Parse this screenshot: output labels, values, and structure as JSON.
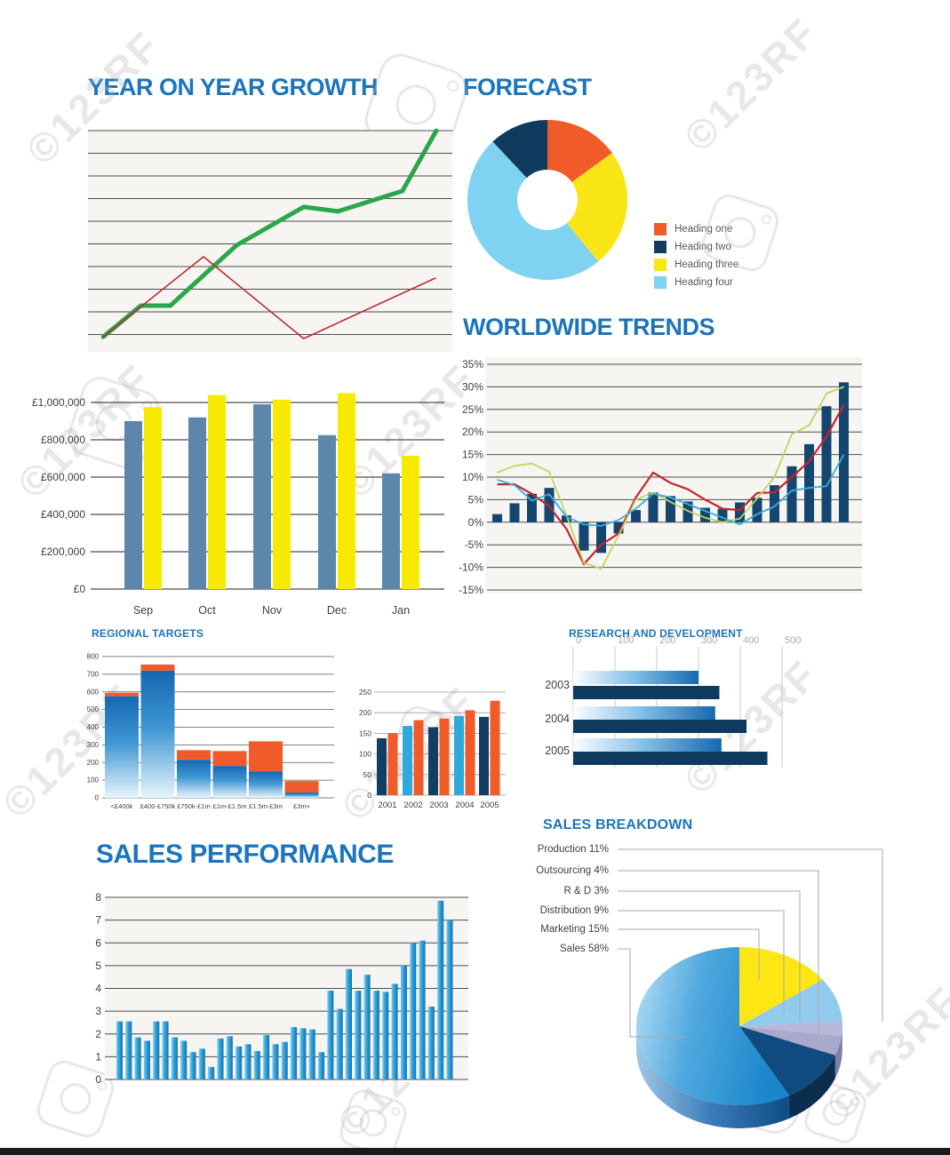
{
  "page": {
    "background": "#FFFFFF",
    "bottom_bar_color": "#1A1A1A"
  },
  "watermark": {
    "text": "©123RF"
  },
  "chart_data": [
    {
      "id": "yoy",
      "type": "line",
      "title": "YEAR ON YEAR GROWTH",
      "bg": "#F6F5F1",
      "grid": {
        "lines": 10,
        "color": "#4D4D4F"
      },
      "axis_labels": "none",
      "series": [
        {
          "name": "growth-green",
          "color": "#2AA74A",
          "width": 5,
          "points": [
            [
              0.042,
              0.068
            ],
            [
              0.145,
              0.209
            ],
            [
              0.226,
              0.209
            ],
            [
              0.408,
              0.482
            ],
            [
              0.592,
              0.655
            ],
            [
              0.686,
              0.635
            ],
            [
              0.863,
              0.727
            ],
            [
              0.956,
              1.0
            ]
          ]
        },
        {
          "name": "growth-red",
          "color": "#BE2A33",
          "width": 1.6,
          "points": [
            [
              0.042,
              0.068
            ],
            [
              0.317,
              0.43
            ],
            [
              0.592,
              0.06
            ],
            [
              0.953,
              0.333
            ]
          ]
        }
      ]
    },
    {
      "id": "forecast",
      "type": "donut",
      "title": "FORECAST",
      "slices": [
        {
          "label": "Heading one",
          "value": 15,
          "color": "#F15A29"
        },
        {
          "label": "Heading three",
          "value": 24,
          "color": "#FAE617"
        },
        {
          "label": "Heading four",
          "value": 49,
          "color": "#7FD2F1"
        },
        {
          "label": "Heading two",
          "value": 12,
          "color": "#113B5E"
        }
      ],
      "legend": [
        {
          "label": "Heading one",
          "color": "#F15A29"
        },
        {
          "label": "Heading two",
          "color": "#113B5E"
        },
        {
          "label": "Heading three",
          "color": "#FAE617"
        },
        {
          "label": "Heading four",
          "color": "#7FD2F1"
        }
      ]
    },
    {
      "id": "trends",
      "type": "combo",
      "title": "WORLDWIDE TRENDS",
      "bg": "#F6F5F1",
      "ymin": -15,
      "ymax": 35,
      "ystep": 5,
      "ylabels": [
        "35%",
        "30%",
        "25%",
        "20%",
        "15%",
        "10%",
        "5%",
        "0%",
        "-5%",
        "-10%",
        "-15%"
      ],
      "bars": {
        "color": "#154670",
        "values": [
          1.8,
          4.2,
          6.3,
          7.6,
          1.5,
          -6.3,
          -6.8,
          -2.5,
          2.7,
          6.6,
          5.8,
          4.6,
          3.2,
          3.0,
          4.4,
          5.4,
          8.2,
          12.4,
          17.3,
          25.7,
          31.0
        ]
      },
      "lines": [
        {
          "name": "red-trend",
          "color": "#C8232C",
          "width": 2.2,
          "values": [
            8.4,
            8.4,
            6.3,
            3.5,
            -1.5,
            -9.3,
            -5.0,
            -2.5,
            5.5,
            11.0,
            8.7,
            7.3,
            5.0,
            3.0,
            2.7,
            6.5,
            6.6,
            10.0,
            13.5,
            19.0,
            26.0
          ]
        },
        {
          "name": "green-trend",
          "color": "#C3D45F",
          "width": 1.8,
          "values": [
            11.0,
            12.5,
            13.0,
            11.2,
            1.5,
            -9.0,
            -10.3,
            -3.0,
            5.0,
            6.6,
            4.5,
            2.5,
            1.0,
            0.0,
            0.8,
            5.3,
            10.0,
            19.5,
            21.5,
            28.5,
            30.0
          ]
        },
        {
          "name": "cyan-trend",
          "color": "#39ADDC",
          "width": 1.8,
          "values": [
            9.4,
            8.2,
            4.8,
            6.2,
            1.2,
            -0.5,
            -0.8,
            0.5,
            3.0,
            6.3,
            5.5,
            4.0,
            2.5,
            1.0,
            -0.5,
            1.8,
            3.5,
            7.0,
            7.6,
            8.0,
            15.0
          ]
        }
      ]
    },
    {
      "id": "monthly",
      "type": "grouped_bars",
      "title": "",
      "categories": [
        "Sep",
        "Oct",
        "Nov",
        "Dec",
        "Jan"
      ],
      "ymax": 1000000,
      "ylabels": [
        "£1,000,000",
        "£800,000",
        "£600,000",
        "£400,000",
        "£200,000",
        "£0"
      ],
      "series": [
        {
          "name": "actual",
          "color": "#5C87AB",
          "values": [
            900000,
            920000,
            990000,
            825000,
            620000
          ]
        },
        {
          "name": "target",
          "color": "#F7EA00",
          "values": [
            975000,
            1040000,
            1015000,
            1050000,
            715000
          ]
        }
      ]
    },
    {
      "id": "regional",
      "type": "stacked_bars",
      "title": "REGIONAL TARGETS",
      "categories": [
        "<£400k",
        "£400-£750k",
        "£750k-£1m",
        "£1m-£1.5m",
        "£1.5m-£3m",
        "£3m+"
      ],
      "ymax": 800,
      "ystep": 100,
      "ylabels": [
        "800",
        "700",
        "600",
        "500",
        "400",
        "300",
        "200",
        "100",
        "0"
      ],
      "base": {
        "name": "achieved",
        "values": [
          575,
          720,
          215,
          180,
          150,
          30
        ]
      },
      "top": {
        "name": "remaining",
        "color": "#F15A29",
        "totals": [
          595,
          755,
          270,
          265,
          320,
          95
        ]
      }
    },
    {
      "id": "fiveyear",
      "type": "pair_bars",
      "title": "",
      "categories": [
        "2001",
        "2002",
        "2003",
        "2004",
        "2005"
      ],
      "ymax": 250,
      "ystep": 50,
      "ylabels": [
        "250",
        "200",
        "150",
        "100",
        "50",
        "0"
      ],
      "first": {
        "values": [
          138,
          168,
          165,
          192,
          190
        ],
        "colors": [
          "#123E63",
          "#2FA8DC",
          "#123E63",
          "#2FA8DC",
          "#123E63"
        ]
      },
      "second": {
        "color": "#F15A29",
        "values": [
          150,
          182,
          186,
          206,
          229
        ]
      }
    },
    {
      "id": "rnd",
      "type": "hbars",
      "title": "RESEARCH AND DEVELOPMENT",
      "xmax": 500,
      "xlabels": [
        "0",
        "100",
        "200",
        "300",
        "400",
        "500"
      ],
      "years": [
        "2003",
        "2004",
        "2005"
      ],
      "gradient_values": [
        300,
        340,
        355
      ],
      "solid_values": [
        350,
        415,
        465
      ],
      "solid_color": "#0E3A60"
    },
    {
      "id": "perf",
      "type": "bars",
      "title": "SALES PERFORMANCE",
      "bg": "#F6F5F1",
      "ymax": 8,
      "ylabels": [
        "8",
        "7",
        "6",
        "5",
        "4",
        "3",
        "2",
        "1",
        "0"
      ],
      "values": [
        2.55,
        2.55,
        1.85,
        1.7,
        2.55,
        2.55,
        1.85,
        1.7,
        1.2,
        1.35,
        0.55,
        1.8,
        1.9,
        1.45,
        1.55,
        1.25,
        1.95,
        1.55,
        1.65,
        2.3,
        2.25,
        2.2,
        1.2,
        3.9,
        3.1,
        4.85,
        3.9,
        4.6,
        3.9,
        3.85,
        4.2,
        5.0,
        6.0,
        6.1,
        3.2,
        7.85,
        7.0
      ]
    },
    {
      "id": "breakdown",
      "type": "pie3d",
      "title": "SALES BREAKDOWN",
      "slices": [
        {
          "label": "Marketing",
          "pct": 15,
          "color": "#FCE613",
          "side": "#C9B400"
        },
        {
          "label": "Distribution",
          "pct": 9,
          "color": "#90CBEE",
          "side": "#6FA3C8"
        },
        {
          "label": "R & D",
          "pct": 3,
          "color": "#B9B8DC",
          "side": "#8E8DB8"
        },
        {
          "label": "Outsourcing",
          "pct": 4,
          "color": "#A9A9CB",
          "side": "#7F7FA8"
        },
        {
          "label": "Production",
          "pct": 11,
          "color": "#114A7E",
          "side": "#0B2E4E"
        },
        {
          "label": "Sales",
          "pct": 58,
          "color": "gradient",
          "side": "gradient"
        }
      ],
      "labels": [
        {
          "name": "Production",
          "pct": "11%"
        },
        {
          "name": "Outsourcing",
          "pct": "4%"
        },
        {
          "name": "R & D",
          "pct": "3%"
        },
        {
          "name": "Distribution",
          "pct": "9%"
        },
        {
          "name": "Marketing",
          "pct": "15%"
        },
        {
          "name": "Sales",
          "pct": "58%"
        }
      ]
    }
  ]
}
